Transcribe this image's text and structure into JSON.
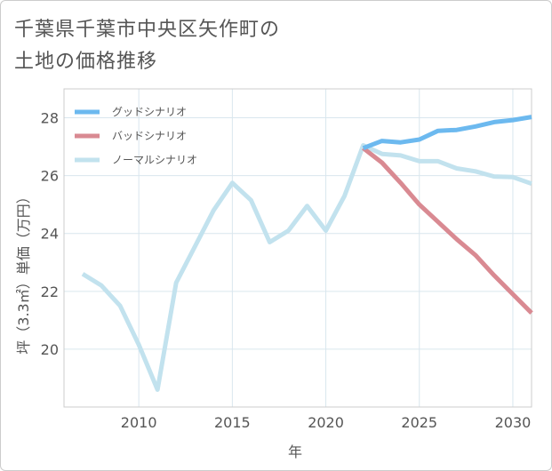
{
  "title": {
    "line1": "千葉県千葉市中央区矢作町の",
    "line2": "土地の価格推移"
  },
  "chart_data": {
    "type": "line",
    "xlabel": "年",
    "ylabel": "坪（3.3㎡）単価（万円）",
    "xlim": [
      2006,
      2031
    ],
    "ylim": [
      18.0,
      29.0
    ],
    "x_ticks": [
      2010,
      2015,
      2020,
      2025,
      2030
    ],
    "y_ticks": [
      20,
      22,
      24,
      26,
      28
    ],
    "grid": true,
    "legend_position": "top-left",
    "series": [
      {
        "name": "グッドシナリオ",
        "color": "#6cb9ef",
        "x": [
          2022,
          2023,
          2024,
          2025,
          2026,
          2027,
          2028,
          2029,
          2030,
          2031
        ],
        "values": [
          26.95,
          27.2,
          27.15,
          27.25,
          27.55,
          27.58,
          27.7,
          27.85,
          27.92,
          28.03
        ]
      },
      {
        "name": "バッドシナリオ",
        "color": "#d98a92",
        "x": [
          2022,
          2023,
          2024,
          2025,
          2026,
          2027,
          2028,
          2029,
          2030,
          2031
        ],
        "values": [
          26.95,
          26.45,
          25.75,
          25.0,
          24.4,
          23.8,
          23.25,
          22.55,
          21.9,
          21.25
        ]
      },
      {
        "name": "ノーマルシナリオ",
        "color": "#c2e2ee",
        "x": [
          2007,
          2008,
          2009,
          2010,
          2011,
          2012,
          2013,
          2014,
          2015,
          2016,
          2017,
          2018,
          2019,
          2020,
          2021,
          2022,
          2023,
          2024,
          2025,
          2026,
          2027,
          2028,
          2029,
          2030,
          2031
        ],
        "values": [
          22.6,
          22.2,
          21.5,
          20.15,
          18.6,
          22.3,
          23.55,
          24.8,
          25.75,
          25.15,
          23.7,
          24.1,
          24.95,
          24.1,
          25.3,
          27.05,
          26.75,
          26.7,
          26.5,
          26.5,
          26.25,
          26.15,
          25.97,
          25.95,
          25.72
        ]
      }
    ]
  }
}
